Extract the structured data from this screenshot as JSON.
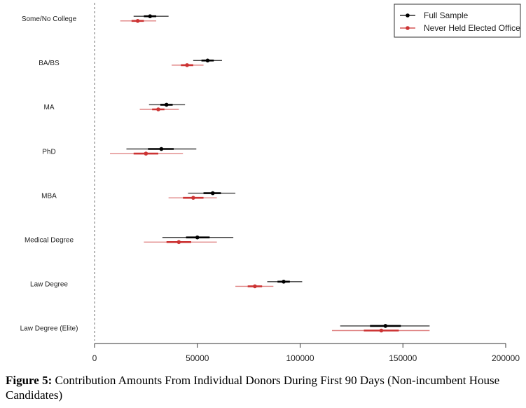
{
  "chart_data": {
    "type": "scatter",
    "categories": [
      "Some/No College",
      "BA/BS",
      "MA",
      "PhD",
      "MBA",
      "Medical Degree",
      "Law Degree",
      "Law Degree (Elite)"
    ],
    "xlim": [
      0,
      200000
    ],
    "xticks": [
      "0",
      "50000",
      "100000",
      "150000",
      "200000"
    ],
    "xtick_values": [
      0,
      50000,
      100000,
      150000,
      200000
    ],
    "reference_line": 0,
    "legend_position": "top-right",
    "series": [
      {
        "name": "Full Sample",
        "color": "#000000",
        "points": [
          {
            "x": 27000,
            "inner": [
              24000,
              30000
            ],
            "outer": [
              19000,
              36000
            ]
          },
          {
            "x": 55000,
            "inner": [
              52000,
              58000
            ],
            "outer": [
              48000,
              62000
            ]
          },
          {
            "x": 35000,
            "inner": [
              32000,
              38000
            ],
            "outer": [
              26500,
              44000
            ]
          },
          {
            "x": 32500,
            "inner": [
              26000,
              38500
            ],
            "outer": [
              15500,
              49500
            ]
          },
          {
            "x": 57500,
            "inner": [
              53000,
              61500
            ],
            "outer": [
              45500,
              68500
            ]
          },
          {
            "x": 50000,
            "inner": [
              44500,
              56000
            ],
            "outer": [
              33000,
              67500
            ]
          },
          {
            "x": 92000,
            "inner": [
              89000,
              95000
            ],
            "outer": [
              84000,
              101000
            ]
          },
          {
            "x": 141500,
            "inner": [
              134000,
              149000
            ],
            "outer": [
              119500,
              163000
            ]
          }
        ]
      },
      {
        "name": "Never Held Elected Office",
        "color": "#cc3333",
        "points": [
          {
            "x": 21000,
            "inner": [
              18000,
              24000
            ],
            "outer": [
              12500,
              30000
            ]
          },
          {
            "x": 45000,
            "inner": [
              42000,
              48000
            ],
            "outer": [
              37500,
              53000
            ]
          },
          {
            "x": 31000,
            "inner": [
              28000,
              34000
            ],
            "outer": [
              22000,
              41000
            ]
          },
          {
            "x": 25000,
            "inner": [
              19000,
              31000
            ],
            "outer": [
              7500,
              43000
            ]
          },
          {
            "x": 48000,
            "inner": [
              43000,
              53000
            ],
            "outer": [
              36000,
              59500
            ]
          },
          {
            "x": 41000,
            "inner": [
              35000,
              47000
            ],
            "outer": [
              24000,
              59500
            ]
          },
          {
            "x": 78000,
            "inner": [
              74500,
              81500
            ],
            "outer": [
              68500,
              87000
            ]
          },
          {
            "x": 139500,
            "inner": [
              131000,
              148000
            ],
            "outer": [
              115500,
              163000
            ]
          }
        ]
      }
    ]
  },
  "caption": {
    "lead": "Figure 5:",
    "text": " Contribution Amounts From Individual Donors During First 90 Days (Non-incumbent House Candidates)"
  }
}
